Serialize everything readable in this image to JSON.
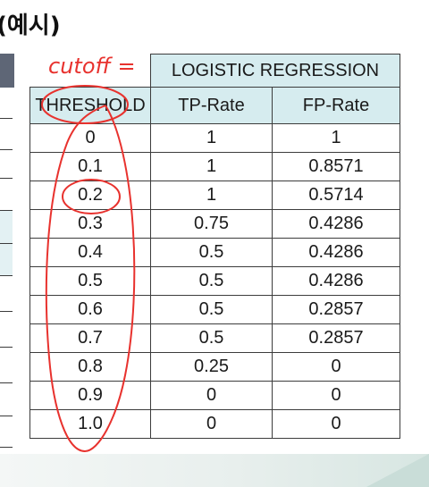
{
  "heading": "(예시)",
  "table": {
    "group_header": "LOGISTIC REGRESSION",
    "columns": [
      "THRESHOLD",
      "TP-Rate",
      "FP-Rate"
    ],
    "rows": [
      [
        "0",
        "1",
        "1"
      ],
      [
        "0.1",
        "1",
        "0.8571"
      ],
      [
        "0.2",
        "1",
        "0.5714"
      ],
      [
        "0.3",
        "0.75",
        "0.4286"
      ],
      [
        "0.4",
        "0.5",
        "0.4286"
      ],
      [
        "0.5",
        "0.5",
        "0.4286"
      ],
      [
        "0.6",
        "0.5",
        "0.2857"
      ],
      [
        "0.7",
        "0.5",
        "0.2857"
      ],
      [
        "0.8",
        "0.25",
        "0"
      ],
      [
        "0.9",
        "0",
        "0"
      ],
      [
        "1.0",
        "0",
        "0"
      ]
    ]
  },
  "annotation": {
    "handwritten_text": "cutoff =",
    "ink_color": "#e8322e"
  }
}
